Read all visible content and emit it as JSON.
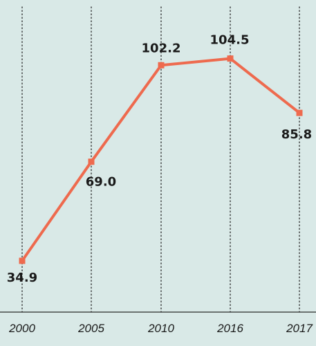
{
  "colors": {
    "background": "#d9e9e7",
    "line": "#ee6a4e",
    "grid": "#2a2a2a",
    "text": "#1a1a1a"
  },
  "chart_data": {
    "type": "line",
    "title": "",
    "xlabel": "",
    "ylabel": "",
    "categories": [
      "2000",
      "2005",
      "2010",
      "2016",
      "2017"
    ],
    "series": [
      {
        "values": [
          34.9,
          69.0,
          102.2,
          104.5,
          85.8
        ],
        "labels": [
          "34.9",
          "69.0",
          "102.2",
          "104.5",
          "85.8"
        ]
      }
    ],
    "ylim": [
      0,
      120
    ],
    "grid": "vertical-dotted",
    "legend": "none"
  }
}
